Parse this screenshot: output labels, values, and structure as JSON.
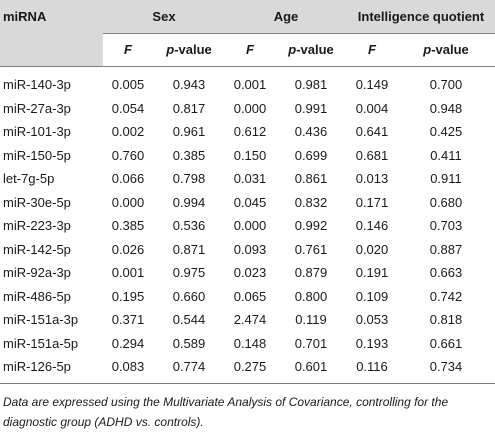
{
  "header": {
    "mirna": "miRNA",
    "sex": "Sex",
    "age": "Age",
    "iq": "Intelligence quotient",
    "f": "F",
    "p_prefix": "p",
    "p_suffix": "-value"
  },
  "rows": [
    {
      "name": "miR-140-3p",
      "sex_f": "0.005",
      "sex_p": "0.943",
      "age_f": "0.001",
      "age_p": "0.981",
      "iq_f": "0.149",
      "iq_p": "0.700"
    },
    {
      "name": "miR-27a-3p",
      "sex_f": "0.054",
      "sex_p": "0.817",
      "age_f": "0.000",
      "age_p": "0.991",
      "iq_f": "0.004",
      "iq_p": "0.948"
    },
    {
      "name": "miR-101-3p",
      "sex_f": "0.002",
      "sex_p": "0.961",
      "age_f": "0.612",
      "age_p": "0.436",
      "iq_f": "0.641",
      "iq_p": "0.425"
    },
    {
      "name": "miR-150-5p",
      "sex_f": "0.760",
      "sex_p": "0.385",
      "age_f": "0.150",
      "age_p": "0.699",
      "iq_f": "0.681",
      "iq_p": "0.411"
    },
    {
      "name": "let-7g-5p",
      "sex_f": "0.066",
      "sex_p": "0.798",
      "age_f": "0.031",
      "age_p": "0.861",
      "iq_f": "0.013",
      "iq_p": "0.911"
    },
    {
      "name": "miR-30e-5p",
      "sex_f": "0.000",
      "sex_p": "0.994",
      "age_f": "0.045",
      "age_p": "0.832",
      "iq_f": "0.171",
      "iq_p": "0.680"
    },
    {
      "name": "miR-223-3p",
      "sex_f": "0.385",
      "sex_p": "0.536",
      "age_f": "0.000",
      "age_p": "0.992",
      "iq_f": "0.146",
      "iq_p": "0.703"
    },
    {
      "name": "miR-142-5p",
      "sex_f": "0.026",
      "sex_p": "0.871",
      "age_f": "0.093",
      "age_p": "0.761",
      "iq_f": "0.020",
      "iq_p": "0.887"
    },
    {
      "name": "miR-92a-3p",
      "sex_f": "0.001",
      "sex_p": "0.975",
      "age_f": "0.023",
      "age_p": "0.879",
      "iq_f": "0.191",
      "iq_p": "0.663"
    },
    {
      "name": "miR-486-5p",
      "sex_f": "0.195",
      "sex_p": "0.660",
      "age_f": "0.065",
      "age_p": "0.800",
      "iq_f": "0.109",
      "iq_p": "0.742"
    },
    {
      "name": "miR-151a-3p",
      "sex_f": "0.371",
      "sex_p": "0.544",
      "age_f": "2.474",
      "age_p": "0.119",
      "iq_f": "0.053",
      "iq_p": "0.818"
    },
    {
      "name": "miR-151a-5p",
      "sex_f": "0.294",
      "sex_p": "0.589",
      "age_f": "0.148",
      "age_p": "0.701",
      "iq_f": "0.193",
      "iq_p": "0.661"
    },
    {
      "name": "miR-126-5p",
      "sex_f": "0.083",
      "sex_p": "0.774",
      "age_f": "0.275",
      "age_p": "0.601",
      "iq_f": "0.116",
      "iq_p": "0.734"
    }
  ],
  "note": "Data are expressed using the Multivariate Analysis of Covariance, controlling for the diagnostic group (ADHD vs. controls)."
}
